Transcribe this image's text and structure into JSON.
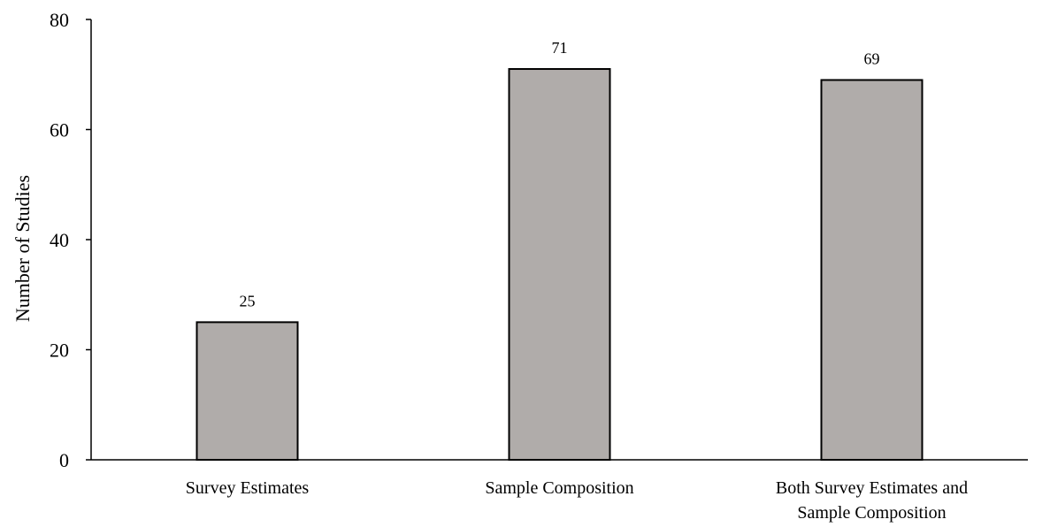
{
  "chart_data": {
    "type": "bar",
    "categories": [
      [
        "Survey Estimates"
      ],
      [
        "Sample Composition"
      ],
      [
        "Both Survey Estimates and",
        "Sample Composition"
      ]
    ],
    "values": [
      25,
      71,
      69
    ],
    "data_labels": [
      "25",
      "71",
      "69"
    ],
    "ylabel": "Number of Studies",
    "xlabel": "",
    "ylim": [
      0,
      80
    ],
    "yticks": [
      0,
      20,
      40,
      60,
      80
    ],
    "grid": false,
    "bar_color": "#b0acaa",
    "bar_edge_color": "#000000"
  }
}
